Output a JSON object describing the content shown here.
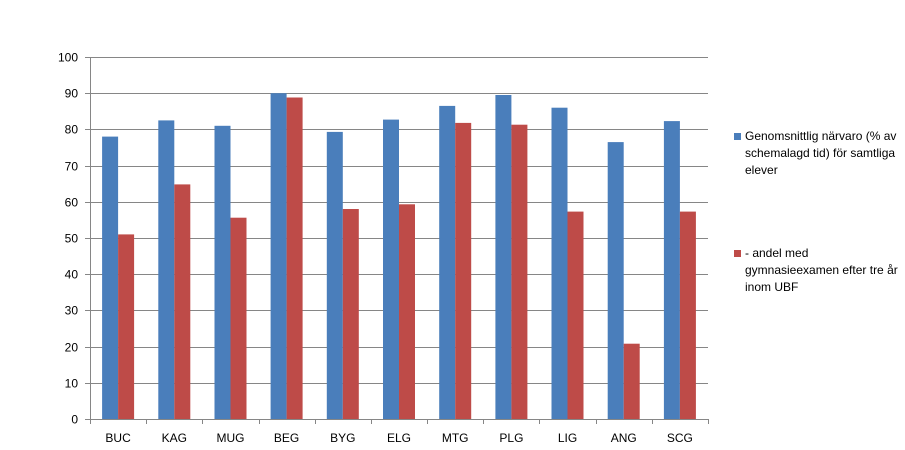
{
  "chart_data": {
    "type": "bar",
    "title": "",
    "xlabel": "",
    "ylabel": "",
    "ylim": [
      0,
      100
    ],
    "yticks": [
      0,
      10,
      20,
      30,
      40,
      50,
      60,
      70,
      80,
      90,
      100
    ],
    "grid": "horizontal",
    "legend_position": "right",
    "categories": [
      "BUC",
      "KAG",
      "MUG",
      "BEG",
      "BYG",
      "ELG",
      "MTG",
      "PLG",
      "LIG",
      "ANG",
      "SCG"
    ],
    "series": [
      {
        "name": "Genomsnittlig närvaro (% av schemalagd tid) för samtliga elever",
        "color": "#4a7ebb",
        "values": [
          78,
          82.5,
          81,
          90,
          79.3,
          82.7,
          86.5,
          89.5,
          86,
          76.5,
          82.3
        ]
      },
      {
        "name": "- andel med gymnasieexamen efter tre år inom UBF",
        "color": "#be4b48",
        "values": [
          51,
          64.8,
          55.6,
          88.8,
          58,
          59.3,
          81.8,
          81.3,
          57.3,
          20.8,
          57.3
        ]
      }
    ]
  }
}
